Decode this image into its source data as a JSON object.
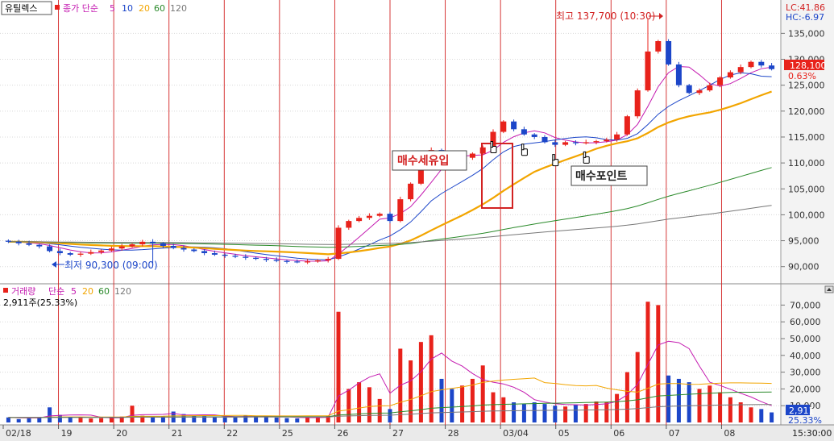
{
  "colors": {
    "up": "#e8221b",
    "down": "#1c46c9",
    "ma5": "#c41ab0",
    "ma10": "#1c46c9",
    "ma20": "#f2a500",
    "ma60": "#2a8a2a",
    "ma120": "#777777",
    "grid": "#d8d8d8",
    "session": "#d22222"
  },
  "price_panel": {
    "stock_name": "유틸렉스",
    "ma_title": "종가 단순",
    "periods": [
      "5",
      "10",
      "20",
      "60",
      "120"
    ],
    "lc_label": "LC:41.86",
    "hc_label": "HC:-6.97",
    "current_price": "128,100",
    "change_pct": "0.63%",
    "high_label": "최고 137,700 (10:30)",
    "low_label": "최저 90,300 (09:00)",
    "inflow_label": "매수세유입",
    "buy_point_label": "매수포인트"
  },
  "volume_panel": {
    "title": "거래량",
    "ma_title": "단순",
    "periods": [
      "5",
      "20",
      "60",
      "120"
    ],
    "summary": "2,911주(25.33%)",
    "current_volume": "2,911",
    "current_pct": "25.33%",
    "corner_icon": "collapse-icon"
  },
  "time_label": "15:30:00",
  "chart_data": [
    {
      "type": "candlestick",
      "x_labels": [
        "02/18",
        "19",
        "20",
        "21",
        "22",
        "25",
        "26",
        "27",
        "28",
        "03/04",
        "05",
        "06",
        "07",
        "08"
      ],
      "y_ticks": [
        "135,000",
        "130,000",
        "125,000",
        "120,000",
        "115,000",
        "110,000",
        "105,000",
        "100,000",
        "95,000",
        "90,000"
      ],
      "ylim": [
        87000,
        140500
      ],
      "closes": [
        94800,
        94500,
        94200,
        93900,
        93000,
        92600,
        92300,
        92500,
        92800,
        93100,
        93500,
        93900,
        94300,
        94800,
        94500,
        94000,
        93600,
        93300,
        93000,
        92600,
        92300,
        92100,
        91900,
        91700,
        91500,
        91300,
        91100,
        91000,
        90900,
        91000,
        91200,
        91500,
        97500,
        98800,
        99400,
        99800,
        100200,
        98800,
        103000,
        106000,
        111000,
        112500,
        111500,
        110500,
        111000,
        111800,
        113000,
        116000,
        118000,
        116500,
        115500,
        115000,
        114000,
        113500,
        114000,
        113800,
        114000,
        114200,
        114500,
        115500,
        119000,
        124000,
        131500,
        133500,
        129000,
        125000,
        123500,
        124000,
        125000,
        126500,
        127500,
        128500,
        129500,
        128800,
        128100
      ],
      "highs_noted": {
        "max": 137700,
        "min": 90300
      },
      "series": [
        {
          "name": "5"
        },
        {
          "name": "10"
        },
        {
          "name": "20"
        },
        {
          "name": "60"
        },
        {
          "name": "120"
        }
      ]
    },
    {
      "type": "bar",
      "ylim": [
        0,
        75000
      ],
      "y_ticks": [
        "70,000",
        "60,000",
        "50,000",
        "40,000",
        "30,000",
        "20,000",
        "10,000"
      ],
      "volumes": [
        3000,
        2000,
        2500,
        3000,
        9000,
        4500,
        3200,
        2800,
        2400,
        2600,
        3000,
        3500,
        10000,
        4000,
        3000,
        3500,
        6500,
        5000,
        4000,
        3800,
        3200,
        3000,
        3500,
        4200,
        3800,
        3500,
        2900,
        2600,
        2400,
        3000,
        3500,
        4000,
        66000,
        20000,
        24000,
        21000,
        14000,
        8000,
        44000,
        37000,
        48000,
        52000,
        26000,
        20000,
        22000,
        26000,
        34000,
        18000,
        15000,
        12000,
        11000,
        12000,
        11000,
        10000,
        9500,
        10500,
        11000,
        12500,
        12000,
        17000,
        30000,
        42000,
        72000,
        70000,
        28000,
        26000,
        24000,
        20000,
        22000,
        18000,
        15000,
        12000,
        9000,
        8000,
        6000
      ]
    }
  ]
}
